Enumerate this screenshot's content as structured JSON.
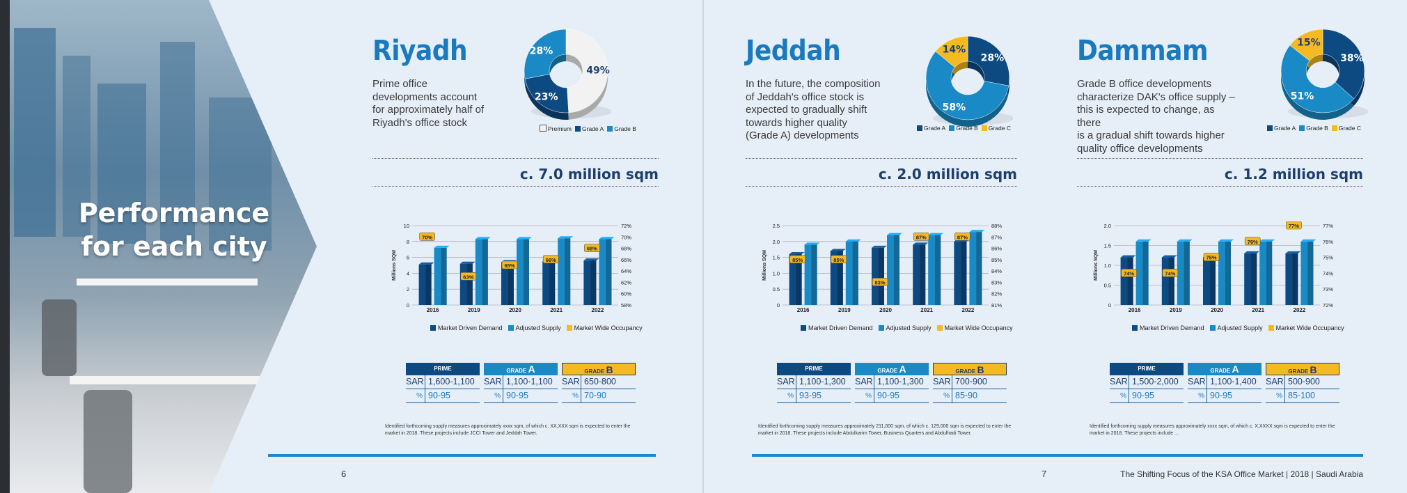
{
  "cover": {
    "title_line1": "Performance",
    "title_line2": "for each city"
  },
  "colors": {
    "dark_blue": "#0e4a82",
    "mid_blue": "#1a8ac6",
    "yellow": "#f5b921",
    "title_blue": "#1a7ac0",
    "sqm_navy": "#1d3f6e"
  },
  "cities": [
    {
      "name": "Riyadh",
      "description": [
        "Prime office",
        "developments account",
        "for approximately half of",
        "Riyadh's office stock"
      ],
      "donut": {
        "slices": [
          {
            "label": "Premium",
            "value": 49,
            "color": "#f2f2f2"
          },
          {
            "label": "Grade A",
            "value": 23,
            "color": "#0e4a82"
          },
          {
            "label": "Grade B",
            "value": 28,
            "color": "#1a8ac6"
          }
        ],
        "labels": [
          "49%",
          "23%",
          "28%"
        ]
      },
      "legend": [
        "Premium",
        "Grade A",
        "Grade B"
      ],
      "stock": "c. 7.0 million sqm",
      "chart_data": {
        "type": "bar",
        "categories": [
          "2016",
          "2019",
          "2020",
          "2021",
          "2022"
        ],
        "ylabel": "Millions SQM",
        "ylim": [
          0,
          10
        ],
        "yticks": [
          "0",
          "2",
          "4",
          "6",
          "8",
          "10"
        ],
        "y2lim": [
          58,
          72
        ],
        "y2ticks": [
          "58%",
          "60%",
          "62%",
          "64%",
          "66%",
          "68%",
          "70%",
          "72%"
        ],
        "series": [
          {
            "name": "Market Driven Demand",
            "values": [
              5.1,
              5.2,
              5.4,
              5.5,
              5.6
            ]
          },
          {
            "name": "Adjusted Supply",
            "values": [
              7.2,
              8.3,
              8.3,
              8.4,
              8.3
            ]
          }
        ],
        "occupancy": {
          "name": "Market Wide Occupancy",
          "values": [
            70,
            63,
            65,
            66,
            68
          ],
          "labels": [
            "70%",
            "63%",
            "65%",
            "66%",
            "68%"
          ]
        }
      },
      "rents": [
        {
          "grade": "PRIME",
          "big": "",
          "sar": "1,600-1,100",
          "pct": "90-95"
        },
        {
          "grade": "GRADE ",
          "big": "A",
          "sar": "1,100-1,100",
          "pct": "90-95"
        },
        {
          "grade": "GRADE ",
          "big": "B",
          "sar": "650-800",
          "pct": "70-90"
        }
      ],
      "footnote": [
        "Identified forthcoming supply measures approximately xxxx sqm, of which c. XX,XXX sqm is expected to enter the",
        "market in 2018.  These projects include JCCI Tower and Jeddah Tower."
      ]
    },
    {
      "name": "Jeddah",
      "description": [
        "In the future, the composition",
        "of Jeddah's office stock is",
        "expected to gradually shift",
        "towards higher quality",
        "(Grade A) developments"
      ],
      "donut": {
        "slices": [
          {
            "label": "Grade A",
            "value": 28,
            "color": "#0e4a82"
          },
          {
            "label": "Grade B",
            "value": 58,
            "color": "#1a8ac6"
          },
          {
            "label": "Grade C",
            "value": 14,
            "color": "#f5b921"
          }
        ],
        "labels": [
          "28%",
          "58%",
          "14%"
        ]
      },
      "legend": [
        "Grade A",
        "Grade B",
        "Grade C"
      ],
      "stock": "c. 2.0 million sqm",
      "chart_data": {
        "type": "bar",
        "categories": [
          "2016",
          "2019",
          "2020",
          "2021",
          "2022"
        ],
        "ylabel": "Millions SQM",
        "ylim": [
          0,
          2.5
        ],
        "yticks": [
          "0",
          "0.5",
          "1.0",
          "1.5",
          "2.0",
          "2.5"
        ],
        "y2lim": [
          81,
          88
        ],
        "y2ticks": [
          "81%",
          "82%",
          "83%",
          "84%",
          "85%",
          "86%",
          "87%",
          "88%"
        ],
        "series": [
          {
            "name": "Market Driven Demand",
            "values": [
              1.6,
              1.7,
              1.8,
              1.9,
              2.0
            ]
          },
          {
            "name": "Adjusted Supply",
            "values": [
              1.9,
              2.0,
              2.2,
              2.2,
              2.3
            ]
          }
        ],
        "occupancy": {
          "name": "Market Wide Occupancy",
          "values": [
            85,
            85,
            83,
            87,
            87
          ],
          "labels": [
            "85%",
            "85%",
            "83%",
            "87%",
            "87%"
          ]
        }
      },
      "rents": [
        {
          "grade": "PRIME",
          "big": "",
          "sar": "1,100-1,300",
          "pct": "93-95"
        },
        {
          "grade": "GRADE ",
          "big": "A",
          "sar": "1,100-1,300",
          "pct": "90-95"
        },
        {
          "grade": "GRADE ",
          "big": "B",
          "sar": "700-900",
          "pct": "85-90"
        }
      ],
      "footnote": [
        "Identified forthcoming supply measures approximately 211,000 sqm, of which c. 129,000 sqm is expected to enter the",
        "market in 2018.  These projects include Abdulkarim Tower, Business Quarters and Abdulhadi Tower."
      ]
    },
    {
      "name": "Dammam",
      "description": [
        "Grade B office developments",
        "characterize DAK's office supply –",
        "this is expected to change, as there",
        "is a gradual shift towards higher",
        "quality office developments"
      ],
      "donut": {
        "slices": [
          {
            "label": "Grade A",
            "value": 38,
            "color": "#0e4a82"
          },
          {
            "label": "Grade B",
            "value": 51,
            "color": "#1a8ac6"
          },
          {
            "label": "Grade C",
            "value": 15,
            "color": "#f5b921"
          }
        ],
        "labels": [
          "38%",
          "51%",
          "15%"
        ]
      },
      "legend": [
        "Grade A",
        "Grade B",
        "Grade C"
      ],
      "stock": "c. 1.2 million sqm",
      "chart_data": {
        "type": "bar",
        "categories": [
          "2016",
          "2019",
          "2020",
          "2021",
          "2022"
        ],
        "ylabel": "Millions SQM",
        "ylim": [
          0,
          2.0
        ],
        "yticks": [
          "0",
          "0.5",
          "1.0",
          "1.5",
          "2.0"
        ],
        "y2lim": [
          72,
          77
        ],
        "y2ticks": [
          "72%",
          "73%",
          "74%",
          "75%",
          "76%",
          "77%"
        ],
        "series": [
          {
            "name": "Market Driven Demand",
            "values": [
              1.2,
              1.2,
              1.2,
              1.3,
              1.3
            ]
          },
          {
            "name": "Adjusted Supply",
            "values": [
              1.6,
              1.6,
              1.6,
              1.6,
              1.6
            ]
          }
        ],
        "occupancy": {
          "name": "Market Wide Occupancy",
          "values": [
            74,
            74,
            75,
            76,
            77
          ],
          "labels": [
            "74%",
            "74%",
            "75%",
            "76%",
            "77%"
          ]
        }
      },
      "rents": [
        {
          "grade": "PRIME",
          "big": "",
          "sar": "1,500-2,000",
          "pct": "90-95"
        },
        {
          "grade": "GRADE ",
          "big": "A",
          "sar": "1,100-1,400",
          "pct": "90-95"
        },
        {
          "grade": "GRADE ",
          "big": "B",
          "sar": "500-900",
          "pct": "85-100"
        }
      ],
      "footnote": [
        "Identified forthcoming supply measures approximately xxxx sqm, of which c. X,XXXX sqm is expected to enter the",
        "market in 2018.  These projects include ..."
      ]
    }
  ],
  "rent_labels": {
    "sar": "SAR",
    "pct": "%"
  },
  "chart_legend": [
    "Market Driven Demand",
    "Adjusted Supply",
    "Market Wide Occupancy"
  ],
  "footer": {
    "page_left": "6",
    "page_right": "7",
    "publication": "The Shifting Focus of the KSA Office Market | 2018 | Saudi Arabia"
  }
}
